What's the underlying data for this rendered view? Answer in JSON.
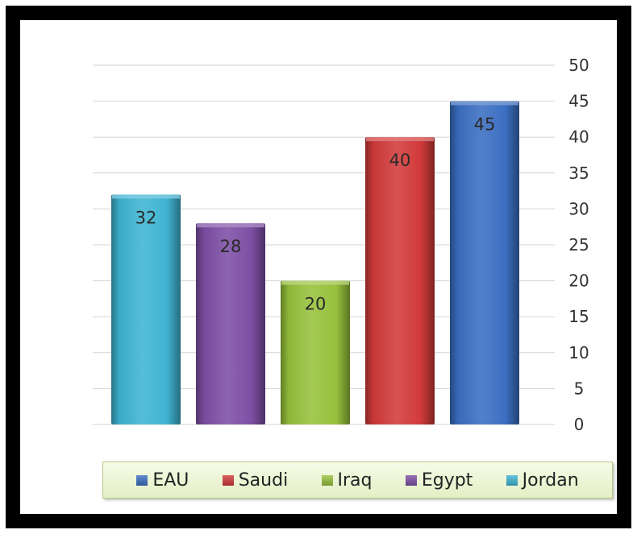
{
  "chart_data": {
    "type": "bar",
    "title": "",
    "xlabel": "",
    "ylabel": "",
    "categories": [
      "Jordan",
      "Egypt",
      "Iraq",
      "Saudi",
      "EAU"
    ],
    "values": [
      32,
      28,
      20,
      40,
      45
    ],
    "data_labels": [
      "32",
      "28",
      "20",
      "40",
      "45"
    ],
    "ylim": [
      0,
      50
    ],
    "yticks": [
      "0",
      "5",
      "10",
      "15",
      "20",
      "25",
      "30",
      "35",
      "40",
      "45",
      "50"
    ],
    "y_axis_position": "right",
    "grid": true,
    "legend": {
      "position": "bottom",
      "items": [
        "EAU",
        "Saudi",
        "Iraq",
        "Egypt",
        "Jordan"
      ]
    },
    "colors": {
      "Jordan": "#3fb4d2",
      "Egypt": "#7e4fa5",
      "Iraq": "#97c23c",
      "Saudi": "#d23a3a",
      "EAU": "#3b6fc2"
    }
  }
}
